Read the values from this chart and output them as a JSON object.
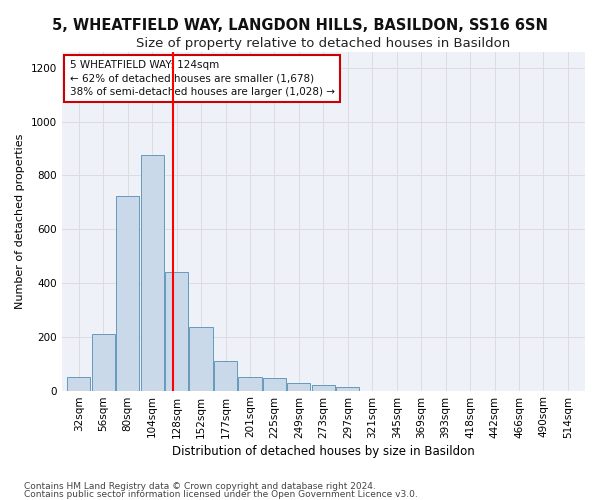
{
  "title": "5, WHEATFIELD WAY, LANGDON HILLS, BASILDON, SS16 6SN",
  "subtitle": "Size of property relative to detached houses in Basildon",
  "xlabel": "Distribution of detached houses by size in Basildon",
  "ylabel": "Number of detached properties",
  "footnote1": "Contains HM Land Registry data © Crown copyright and database right 2024.",
  "footnote2": "Contains public sector information licensed under the Open Government Licence v3.0.",
  "bar_labels": [
    "32sqm",
    "56sqm",
    "80sqm",
    "104sqm",
    "128sqm",
    "152sqm",
    "177sqm",
    "201sqm",
    "225sqm",
    "249sqm",
    "273sqm",
    "297sqm",
    "321sqm",
    "345sqm",
    "369sqm",
    "393sqm",
    "418sqm",
    "442sqm",
    "466sqm",
    "490sqm",
    "514sqm"
  ],
  "bar_values": [
    50,
    210,
    725,
    875,
    440,
    235,
    110,
    50,
    45,
    30,
    20,
    15,
    0,
    0,
    0,
    0,
    0,
    0,
    0,
    0,
    0
  ],
  "bar_color": "#c9d9e9",
  "bar_edge_color": "#6699bb",
  "bar_edge_width": 0.7,
  "grid_color": "#dddddd",
  "bg_color": "#eef2f8",
  "red_line_x": 4,
  "annotation_text": "5 WHEATFIELD WAY: 124sqm\n← 62% of detached houses are smaller (1,678)\n38% of semi-detached houses are larger (1,028) →",
  "annotation_box_color": "#ffffff",
  "annotation_box_edge": "#cc0000",
  "ylim": [
    0,
    1260
  ],
  "yticks": [
    0,
    200,
    400,
    600,
    800,
    1000,
    1200
  ],
  "title_fontsize": 10.5,
  "subtitle_fontsize": 9.5,
  "xlabel_fontsize": 8.5,
  "ylabel_fontsize": 8,
  "tick_fontsize": 7.5,
  "annotation_fontsize": 7.5,
  "footnote_fontsize": 6.5
}
